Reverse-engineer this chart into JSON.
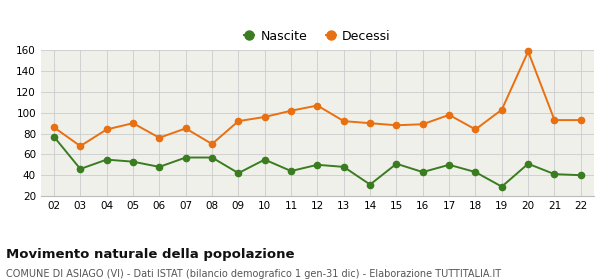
{
  "years": [
    2,
    3,
    4,
    5,
    6,
    7,
    8,
    9,
    10,
    11,
    12,
    13,
    14,
    15,
    16,
    17,
    18,
    19,
    20,
    21,
    22
  ],
  "nascite": [
    77,
    46,
    55,
    53,
    48,
    57,
    57,
    42,
    55,
    44,
    50,
    48,
    31,
    51,
    43,
    50,
    43,
    29,
    51,
    41,
    40
  ],
  "decessi": [
    86,
    68,
    84,
    90,
    76,
    85,
    70,
    92,
    96,
    102,
    107,
    92,
    90,
    88,
    89,
    98,
    84,
    103,
    159,
    93,
    93
  ],
  "nascite_color": "#3a7d20",
  "decessi_color": "#e87010",
  "background_color": "#f0f0eb",
  "fig_background": "#ffffff",
  "grid_color": "#cccccc",
  "ylim": [
    20,
    160
  ],
  "yticks": [
    20,
    40,
    60,
    80,
    100,
    120,
    140,
    160
  ],
  "title": "Movimento naturale della popolazione",
  "subtitle": "COMUNE DI ASIAGO (VI) - Dati ISTAT (bilancio demografico 1 gen-31 dic) - Elaborazione TUTTITALIA.IT",
  "legend_nascite": "Nascite",
  "legend_decessi": "Decessi",
  "marker_size": 4.5,
  "line_width": 1.4,
  "title_fontsize": 9.5,
  "subtitle_fontsize": 7.0,
  "tick_fontsize": 7.5,
  "legend_fontsize": 9.0
}
